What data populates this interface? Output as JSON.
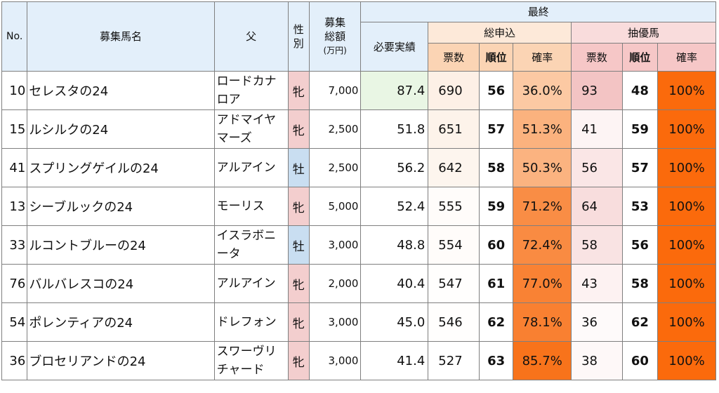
{
  "header": {
    "no": "No.",
    "horse_name": "募集馬名",
    "sire": "父",
    "sex_line1": "性",
    "sex_line2": "別",
    "amount_line1": "募集",
    "amount_line2": "総額",
    "amount_unit": "(万円)",
    "final": "最終",
    "required": "必要実績",
    "total_apps": "総申込",
    "priority": "抽優馬",
    "votes": "票数",
    "rank": "順位",
    "probability": "確率"
  },
  "rows": [
    {
      "no": "10",
      "name": "セレスタの24",
      "sire": "ロードカナロア",
      "sex": "牝",
      "sex_type": "f",
      "amount": "7,000",
      "required": "87.4",
      "votes": "690",
      "rank": "56",
      "rate": "36.0%",
      "p_votes": "93",
      "p_rank": "48",
      "p_rate": "100%",
      "req_color": "#e9f6e4",
      "votes_color": "#fdf0e6",
      "rate_color": "#fcc9a3",
      "p_votes_color": "#f3c4c4"
    },
    {
      "no": "15",
      "name": "ルシルクの24",
      "sire": "アドマイヤマーズ",
      "sex": "牝",
      "sex_type": "f",
      "amount": "2,500",
      "required": "51.8",
      "votes": "651",
      "rank": "57",
      "rate": "51.3%",
      "p_votes": "41",
      "p_rank": "59",
      "p_rate": "100%",
      "req_color": "#ffffff",
      "votes_color": "#fdf3ea",
      "rate_color": "#fbb27e",
      "p_votes_color": "#fdf4f4"
    },
    {
      "no": "41",
      "name": "スプリングゲイルの24",
      "sire": "アルアイン",
      "sex": "牡",
      "sex_type": "m",
      "amount": "2,500",
      "required": "56.2",
      "votes": "642",
      "rank": "58",
      "rate": "50.3%",
      "p_votes": "56",
      "p_rank": "57",
      "p_rate": "100%",
      "req_color": "#ffffff",
      "votes_color": "#fdf5ee",
      "rate_color": "#fbb380",
      "p_votes_color": "#fae6e6"
    },
    {
      "no": "13",
      "name": "シーブルックの24",
      "sire": "モーリス",
      "sex": "牝",
      "sex_type": "f",
      "amount": "5,000",
      "required": "52.4",
      "votes": "555",
      "rank": "59",
      "rate": "71.2%",
      "p_votes": "64",
      "p_rank": "53",
      "p_rate": "100%",
      "req_color": "#ffffff",
      "votes_color": "#fffcfa",
      "rate_color": "#f98d45",
      "p_votes_color": "#f8dddd"
    },
    {
      "no": "33",
      "name": "ルコントブルーの24",
      "sire": "イスラボニータ",
      "sex": "牡",
      "sex_type": "m",
      "amount": "3,000",
      "required": "48.8",
      "votes": "554",
      "rank": "60",
      "rate": "72.4%",
      "p_votes": "58",
      "p_rank": "56",
      "p_rate": "100%",
      "req_color": "#ffffff",
      "votes_color": "#fffcfa",
      "rate_color": "#f98b42",
      "p_votes_color": "#f9e3e3"
    },
    {
      "no": "76",
      "name": "バルバレスコの24",
      "sire": "アルアイン",
      "sex": "牝",
      "sex_type": "f",
      "amount": "2,000",
      "required": "40.4",
      "votes": "547",
      "rank": "61",
      "rate": "77.0%",
      "p_votes": "43",
      "p_rank": "58",
      "p_rate": "100%",
      "req_color": "#ffffff",
      "votes_color": "#fffefd",
      "rate_color": "#f98234",
      "p_votes_color": "#fdf2f2"
    },
    {
      "no": "54",
      "name": "ポレンティアの24",
      "sire": "ドレフォン",
      "sex": "牝",
      "sex_type": "f",
      "amount": "3,000",
      "required": "45.0",
      "votes": "546",
      "rank": "62",
      "rate": "78.1%",
      "p_votes": "36",
      "p_rank": "62",
      "p_rate": "100%",
      "req_color": "#ffffff",
      "votes_color": "#fffefd",
      "rate_color": "#f98031",
      "p_votes_color": "#fefafa"
    },
    {
      "no": "36",
      "name": "ブロセリアンドの24",
      "sire": "スワーヴリチャード",
      "sex": "牝",
      "sex_type": "f",
      "amount": "3,000",
      "required": "41.4",
      "votes": "527",
      "rank": "63",
      "rate": "85.7%",
      "p_votes": "38",
      "p_rank": "60",
      "p_rate": "100%",
      "req_color": "#ffffff",
      "votes_color": "#ffffff",
      "rate_color": "#f8731b",
      "p_votes_color": "#fef8f8"
    }
  ]
}
